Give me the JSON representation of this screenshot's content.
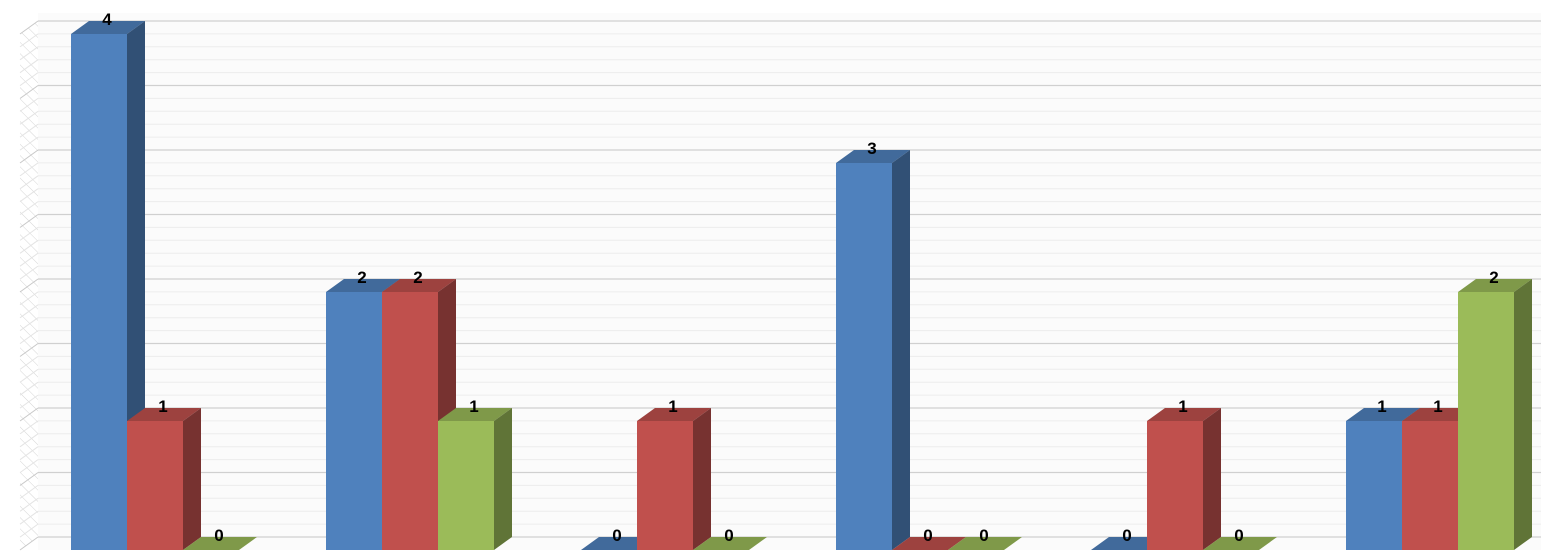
{
  "chart_data": {
    "type": "bar",
    "style": "3d-clustered-column",
    "categories": [
      "",
      "",
      "",
      "",
      "",
      ""
    ],
    "series": [
      {
        "color": "#4F81BD",
        "values": [
          4,
          2,
          0,
          3,
          0,
          1
        ]
      },
      {
        "color": "#C0504D",
        "values": [
          1,
          2,
          1,
          0,
          1,
          1
        ]
      },
      {
        "color": "#9BBB59",
        "values": [
          0,
          1,
          0,
          0,
          0,
          2
        ]
      }
    ],
    "data_labels": true,
    "ylim": [
      0,
      4
    ],
    "grid": true,
    "title": "",
    "xlabel": "",
    "ylabel": ""
  }
}
